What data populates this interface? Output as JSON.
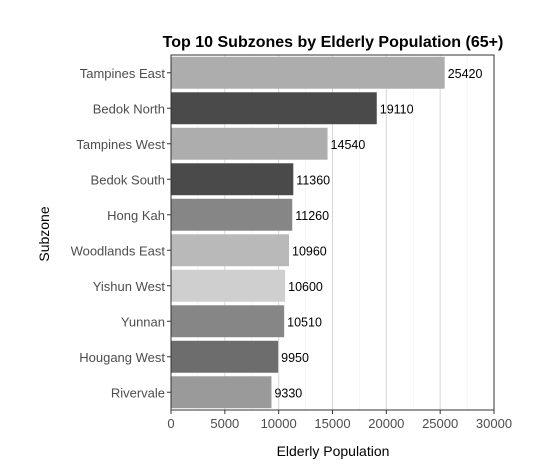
{
  "chart_data": {
    "type": "bar",
    "orientation": "horizontal",
    "title": "Top 10 Subzones by Elderly Population (65+)",
    "xlabel": "Elderly Population",
    "ylabel": "Subzone",
    "xlim": [
      0,
      30000
    ],
    "x_ticks": [
      "0",
      "5000",
      "10000",
      "15000",
      "20000",
      "25000",
      "30000"
    ],
    "grid": "vertical",
    "categories": [
      "Tampines East",
      "Bedok North",
      "Tampines West",
      "Bedok South",
      "Hong Kah",
      "Woodlands East",
      "Yishun West",
      "Yunnan",
      "Hougang West",
      "Rivervale"
    ],
    "values": [
      25420,
      19110,
      14540,
      11360,
      11260,
      10960,
      10600,
      10510,
      9950,
      9330
    ],
    "value_labels": [
      "25420",
      "19110",
      "14540",
      "11360",
      "11260",
      "10960",
      "10600",
      "10510",
      "9950",
      "9330"
    ],
    "colors": [
      "#adadad",
      "#4a4a4a",
      "#adadad",
      "#4a4a4a",
      "#868686",
      "#b9b9b9",
      "#cfcfcf",
      "#868686",
      "#6d6d6d",
      "#9a9a9a"
    ]
  }
}
